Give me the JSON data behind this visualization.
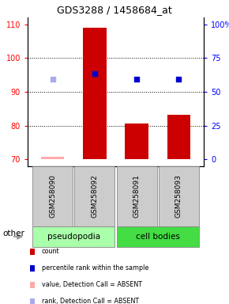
{
  "title": "GDS3288 / 1458684_at",
  "samples": [
    "GSM258090",
    "GSM258092",
    "GSM258091",
    "GSM258093"
  ],
  "ylim": [
    68,
    112
  ],
  "yticks_left": [
    70,
    80,
    90,
    100,
    110
  ],
  "yright_labels": [
    "0",
    "25",
    "50",
    "75",
    "100%"
  ],
  "yright_ticks_mapped": [
    70,
    80,
    90,
    100,
    110
  ],
  "bar_tops": [
    70.7,
    109.0,
    80.7,
    83.3
  ],
  "bar_bottom": 70,
  "bar_color": "#cc0000",
  "bar_absent_color": "#ffaaaa",
  "bar_absent": [
    true,
    false,
    false,
    false
  ],
  "dot_values": [
    93.8,
    95.3,
    93.8,
    93.8
  ],
  "dot_colors": [
    "#aaaaee",
    "#0000cc",
    "#0000cc",
    "#0000cc"
  ],
  "dot_size": 25,
  "bar_width": 0.55,
  "dotted_yticks": [
    80,
    90,
    100
  ],
  "legend_items": [
    {
      "color": "#cc0000",
      "label": "count"
    },
    {
      "color": "#0000cc",
      "label": "percentile rank within the sample"
    },
    {
      "color": "#ffaaaa",
      "label": "value, Detection Call = ABSENT"
    },
    {
      "color": "#aaaaee",
      "label": "rank, Detection Call = ABSENT"
    }
  ],
  "pseudopodia_color": "#aaffaa",
  "cell_bodies_color": "#44dd44",
  "gray_color": "#cccccc",
  "x_positions": [
    0,
    1,
    2,
    3
  ]
}
